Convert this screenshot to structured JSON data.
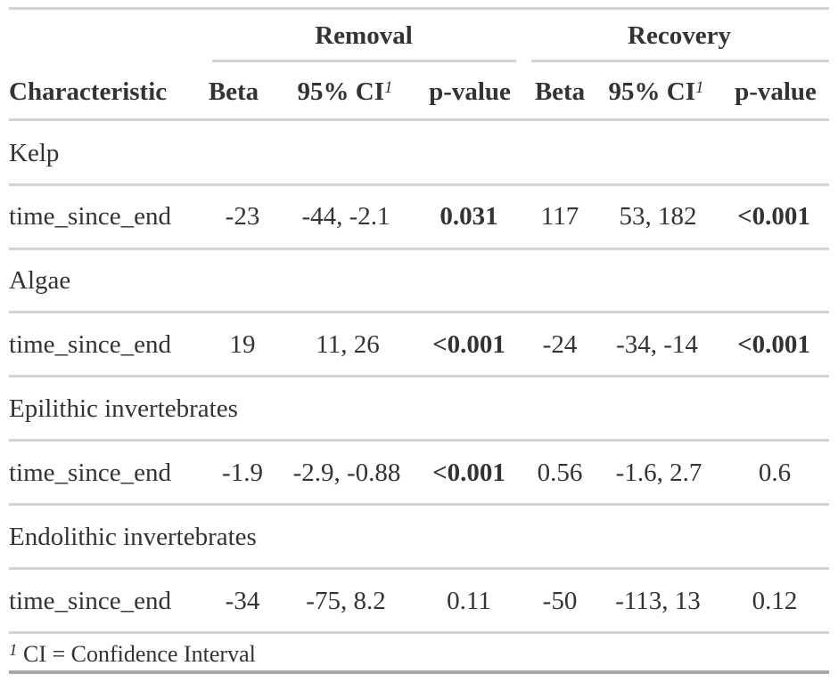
{
  "table": {
    "spanners": [
      "Removal",
      "Recovery"
    ],
    "headers": {
      "characteristic": "Characteristic",
      "beta": "Beta",
      "ci": "95% CI",
      "ci_mark": "1",
      "pvalue": "p-value"
    },
    "groups": [
      {
        "label": "Kelp",
        "row": {
          "name": "time_since_end",
          "r_beta": "-23",
          "r_ci": "-44, -2.1",
          "r_p": "0.031",
          "r_p_bold": true,
          "v_beta": "117",
          "v_ci": "53, 182",
          "v_p": "<0.001",
          "v_p_bold": true
        }
      },
      {
        "label": "Algae",
        "row": {
          "name": "time_since_end",
          "r_beta": "19",
          "r_ci": "11, 26",
          "r_p": "<0.001",
          "r_p_bold": true,
          "v_beta": "-24",
          "v_ci": "-34, -14",
          "v_p": "<0.001",
          "v_p_bold": true
        }
      },
      {
        "label": "Epilithic invertebrates",
        "row": {
          "name": "time_since_end",
          "r_beta": "-1.9",
          "r_ci": "-2.9, -0.88",
          "r_p": "<0.001",
          "r_p_bold": true,
          "v_beta": "0.56",
          "v_ci": "-1.6, 2.7",
          "v_p": "0.6",
          "v_p_bold": false
        }
      },
      {
        "label": "Endolithic invertebrates",
        "row": {
          "name": "time_since_end",
          "r_beta": "-34",
          "r_ci": "-75, 8.2",
          "r_p": "0.11",
          "r_p_bold": false,
          "v_beta": "-50",
          "v_ci": "-113, 13",
          "v_p": "0.12",
          "v_p_bold": false
        }
      }
    ],
    "footnote": {
      "mark": "1",
      "text": "CI = Confidence Interval"
    }
  }
}
